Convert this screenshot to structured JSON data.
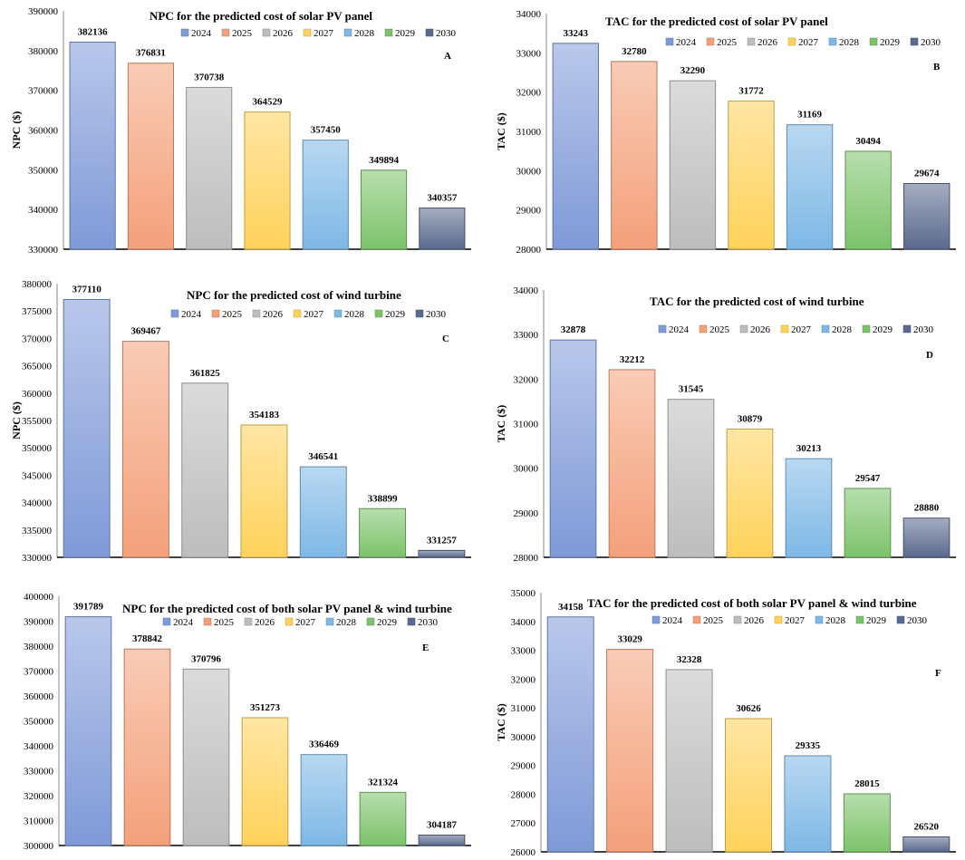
{
  "chart_data": [
    {
      "type": "bar",
      "panel": "A",
      "title": "NPC for the predicted  cost of solar  PV panel",
      "ylabel": "NPC ($)",
      "xlabel": "",
      "categories": [
        "2024",
        "2025",
        "2026",
        "2027",
        "2028",
        "2029",
        "2030"
      ],
      "values": [
        382136,
        376831,
        370738,
        364529,
        357450,
        349894,
        340357
      ],
      "ylim": [
        330000,
        390000
      ],
      "yticks": [
        330000,
        340000,
        350000,
        360000,
        370000,
        380000,
        390000
      ]
    },
    {
      "type": "bar",
      "panel": "B",
      "title": "TAC for the predicted cost of solar  PV panel",
      "ylabel": "TAC ($)",
      "xlabel": "",
      "categories": [
        "2024",
        "2025",
        "2026",
        "2027",
        "2028",
        "2029",
        "2030"
      ],
      "values": [
        33243,
        32780,
        32290,
        31772,
        31169,
        30494,
        29674
      ],
      "ylim": [
        28000,
        34000
      ],
      "yticks": [
        28000,
        29000,
        30000,
        31000,
        32000,
        33000,
        34000
      ]
    },
    {
      "type": "bar",
      "panel": "C",
      "title": "NPC for the predicted  cost of wind turbine",
      "ylabel": "NPC ($)",
      "xlabel": "",
      "categories": [
        "2024",
        "2025",
        "2026",
        "2027",
        "2028",
        "2029",
        "2030"
      ],
      "values": [
        377110,
        369467,
        361825,
        354183,
        346541,
        338899,
        331257
      ],
      "ylim": [
        330000,
        380000
      ],
      "yticks": [
        330000,
        335000,
        340000,
        345000,
        350000,
        355000,
        360000,
        365000,
        370000,
        375000,
        380000
      ]
    },
    {
      "type": "bar",
      "panel": "D",
      "title": "TAC for the predicted cost of wind turbine",
      "ylabel": "TAC ($)",
      "xlabel": "",
      "categories": [
        "2024",
        "2025",
        "2026",
        "2027",
        "2028",
        "2029",
        "2030"
      ],
      "values": [
        32878,
        32212,
        31545,
        30879,
        30213,
        29547,
        28880
      ],
      "ylim": [
        28000,
        34000
      ],
      "yticks": [
        28000,
        29000,
        30000,
        31000,
        32000,
        33000,
        34000
      ]
    },
    {
      "type": "bar",
      "panel": "E",
      "title": "NPC for the predicted  cost of both  solar PV panel  & wind turbine",
      "ylabel": "",
      "xlabel": "",
      "categories": [
        "2024",
        "2025",
        "2026",
        "2027",
        "2028",
        "2029",
        "2030"
      ],
      "values": [
        391789,
        378842,
        370796,
        351273,
        336469,
        321324,
        304187
      ],
      "ylim": [
        300000,
        400000
      ],
      "yticks": [
        300000,
        310000,
        320000,
        330000,
        340000,
        350000,
        360000,
        370000,
        380000,
        390000,
        400000
      ]
    },
    {
      "type": "bar",
      "panel": "F",
      "title": "TAC for the predicted  cost of both  solar PV panel & wind turbine",
      "ylabel": "TAC ($)",
      "xlabel": "",
      "categories": [
        "2024",
        "2025",
        "2026",
        "2027",
        "2028",
        "2029",
        "2030"
      ],
      "values": [
        34158,
        33029,
        32328,
        30626,
        29335,
        28015,
        26520
      ],
      "ylim": [
        26000,
        35000
      ],
      "yticks": [
        26000,
        27000,
        28000,
        29000,
        30000,
        31000,
        32000,
        33000,
        34000,
        35000
      ]
    }
  ],
  "colors": {
    "2024": "#7f9ad8",
    "2025": "#f4a07a",
    "2026": "#bdbdbd",
    "2027": "#ffd25a",
    "2028": "#7eb8e6",
    "2029": "#7cc36a",
    "2030": "#5a6a8e"
  }
}
